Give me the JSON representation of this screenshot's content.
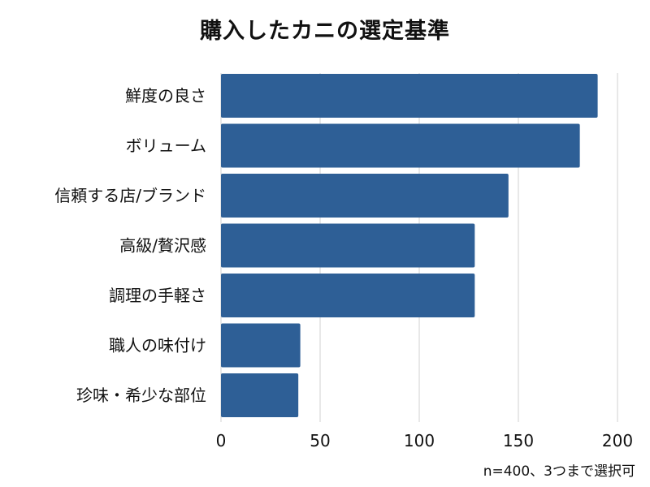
{
  "chart_data": {
    "type": "bar",
    "orientation": "horizontal",
    "title": "購入したカニの選定基準",
    "categories": [
      "鮮度の良さ",
      "ボリューム",
      "信頼する店/ブランド",
      "高級/贅沢感",
      "調理の手軽さ",
      "職人の味付け",
      "珍味・希少な部位"
    ],
    "values": [
      190,
      181,
      145,
      128,
      128,
      40,
      39
    ],
    "xlim": [
      0,
      200
    ],
    "xticks": [
      0,
      50,
      100,
      150,
      200
    ],
    "grid": true,
    "legend": "none",
    "note": "n=400、3つまで選択可",
    "colors": {
      "bar": "#2e5f96",
      "grid": "#d0d0d0"
    }
  }
}
